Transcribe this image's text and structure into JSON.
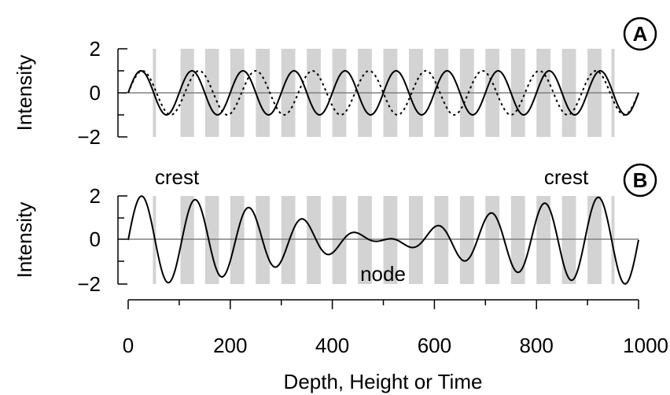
{
  "chart_data": [
    {
      "id": "A",
      "type": "line",
      "panel_label": "A",
      "ylabel": "Intensity",
      "ylim": [
        -2,
        2
      ],
      "yticks": [
        2,
        0,
        -2
      ],
      "ytick_labels": [
        "2",
        "0",
        "−2"
      ],
      "xlim": [
        0,
        1000
      ],
      "band_edges": [
        51.5,
        102.6,
        150.7,
        200.0,
        250.0,
        300.0,
        350.0,
        400.0,
        450.0,
        500.0,
        550.0,
        600.0,
        650.0,
        700.0,
        750.0,
        800.0,
        850.0,
        900.0,
        950.0
      ],
      "series": [
        {
          "style": "solid",
          "amplitude": 1,
          "wavelength": 100,
          "phase": 0
        },
        {
          "style": "dotted",
          "amplitude": 1,
          "wavelength": 111.1,
          "phase": 0
        }
      ]
    },
    {
      "id": "B",
      "type": "line",
      "panel_label": "B",
      "ylabel": "Intensity",
      "ylim": [
        -2,
        2
      ],
      "yticks": [
        2,
        0,
        -2
      ],
      "ytick_labels": [
        "2",
        "0",
        "−2"
      ],
      "xlim": [
        0,
        1000
      ],
      "xticks": [
        0,
        200,
        400,
        600,
        800,
        1000
      ],
      "xtick_labels": [
        "0",
        "200",
        "400",
        "600",
        "800",
        "1000"
      ],
      "xlabel": "Depth, Height or Time",
      "band_edges": [
        51.5,
        102.6,
        150.7,
        200.0,
        250.0,
        300.0,
        350.0,
        400.0,
        450.0,
        500.0,
        550.0,
        600.0,
        650.0,
        700.0,
        750.0,
        800.0,
        850.0,
        900.0,
        950.0
      ],
      "series": [
        {
          "style": "solid",
          "description_values": "sum of panel A waves",
          "components": [
            {
              "amplitude": 1,
              "wavelength": 100,
              "phase": 0
            },
            {
              "amplitude": 1,
              "wavelength": 111.1,
              "phase": 0
            }
          ]
        }
      ],
      "annotations": [
        {
          "text": "crest",
          "x": 30
        },
        {
          "text": "crest",
          "x": 870
        },
        {
          "text": "node",
          "x": 500
        }
      ]
    }
  ]
}
